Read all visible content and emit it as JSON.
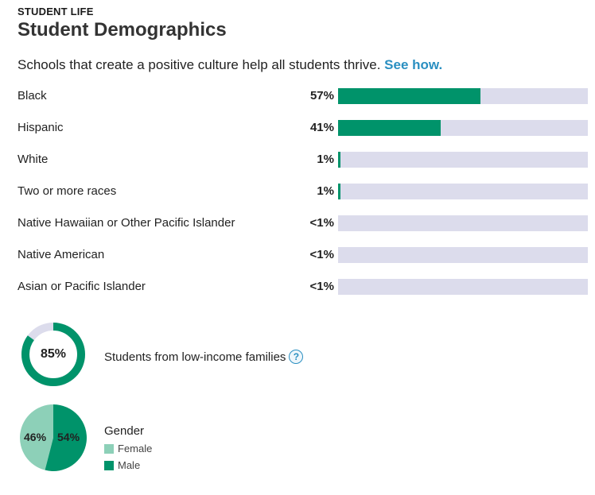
{
  "header": {
    "eyebrow": "STUDENT LIFE",
    "title": "Student Demographics",
    "intro": "Schools that create a positive culture help all students thrive.",
    "intro_link": "See how."
  },
  "colors": {
    "accent": "#00936a",
    "track": "#dcdcec",
    "female": "#8dd0b8",
    "male": "#00936a",
    "link": "#2a8fc1"
  },
  "chart_data": [
    {
      "type": "bar",
      "title": "Student Demographics",
      "categories": [
        "Black",
        "Hispanic",
        "White",
        "Two or more races",
        "Native Hawaiian or Other Pacific Islander",
        "Native American",
        "Asian or Pacific Islander"
      ],
      "labels": [
        "57%",
        "41%",
        "1%",
        "1%",
        "<1%",
        "<1%",
        "<1%"
      ],
      "values": [
        57,
        41,
        1,
        1,
        0,
        0,
        0
      ],
      "xlim": [
        0,
        100
      ]
    },
    {
      "type": "pie",
      "title": "Students from low-income families",
      "center_label": "85%",
      "values": [
        85,
        15
      ]
    },
    {
      "type": "pie",
      "title": "Gender",
      "categories": [
        "Female",
        "Male"
      ],
      "labels": [
        "46%",
        "54%"
      ],
      "values": [
        46,
        54
      ]
    }
  ]
}
